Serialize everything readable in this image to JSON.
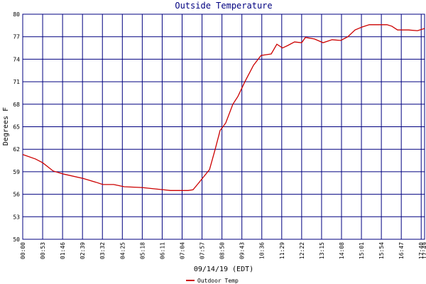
{
  "chart_data": {
    "type": "line",
    "title": "Outside Temperature",
    "y_label": "Degrees F",
    "x_label": "09/14/19 (EDT)",
    "x": [
      0,
      34,
      53,
      81,
      108,
      161,
      195,
      213,
      242,
      270,
      317,
      374,
      393,
      440,
      453,
      468,
      497,
      512,
      525,
      540,
      559,
      572,
      591,
      614,
      634,
      661,
      676,
      691,
      704,
      723,
      742,
      752,
      776,
      799,
      823,
      846,
      865,
      884,
      903,
      922,
      969,
      982,
      997,
      1026,
      1050,
      1069
    ],
    "series": [
      {
        "name": "Outdoor Temp",
        "color": "#cc0000",
        "values": [
          61.3,
          60.7,
          60.2,
          59.1,
          58.7,
          58.1,
          57.6,
          57.3,
          57.3,
          57.0,
          56.9,
          56.6,
          56.5,
          56.5,
          56.6,
          57.5,
          59.3,
          62.0,
          64.5,
          65.5,
          68.0,
          69.0,
          71.0,
          73.2,
          74.5,
          74.7,
          76.0,
          75.5,
          75.8,
          76.3,
          76.2,
          76.9,
          76.7,
          76.2,
          76.6,
          76.5,
          77.0,
          77.9,
          78.3,
          78.6,
          78.6,
          78.4,
          77.9,
          77.9,
          77.8,
          78.1
        ]
      }
    ],
    "xlim": [
      0,
      1069
    ],
    "xticks": [
      {
        "value": 0,
        "label": "00:00"
      },
      {
        "value": 53,
        "label": "00:53"
      },
      {
        "value": 106,
        "label": "01:46"
      },
      {
        "value": 159,
        "label": "02:39"
      },
      {
        "value": 212,
        "label": "03:32"
      },
      {
        "value": 265,
        "label": "04:25"
      },
      {
        "value": 318,
        "label": "05:18"
      },
      {
        "value": 371,
        "label": "06:11"
      },
      {
        "value": 424,
        "label": "07:04"
      },
      {
        "value": 477,
        "label": "07:57"
      },
      {
        "value": 530,
        "label": "08:50"
      },
      {
        "value": 583,
        "label": "09:43"
      },
      {
        "value": 636,
        "label": "10:36"
      },
      {
        "value": 689,
        "label": "11:29"
      },
      {
        "value": 742,
        "label": "12:22"
      },
      {
        "value": 795,
        "label": "13:15"
      },
      {
        "value": 848,
        "label": "14:08"
      },
      {
        "value": 901,
        "label": "15:01"
      },
      {
        "value": 954,
        "label": "15:54"
      },
      {
        "value": 1007,
        "label": "16:47"
      },
      {
        "value": 1060,
        "label": "17:40"
      },
      {
        "value": 1069,
        "label": "17:49"
      }
    ],
    "ylim": [
      50,
      80
    ],
    "yticks": [
      50,
      53,
      56,
      59,
      62,
      65,
      68,
      71,
      74,
      77,
      80
    ],
    "grid": true,
    "grid_color": "#000080"
  }
}
